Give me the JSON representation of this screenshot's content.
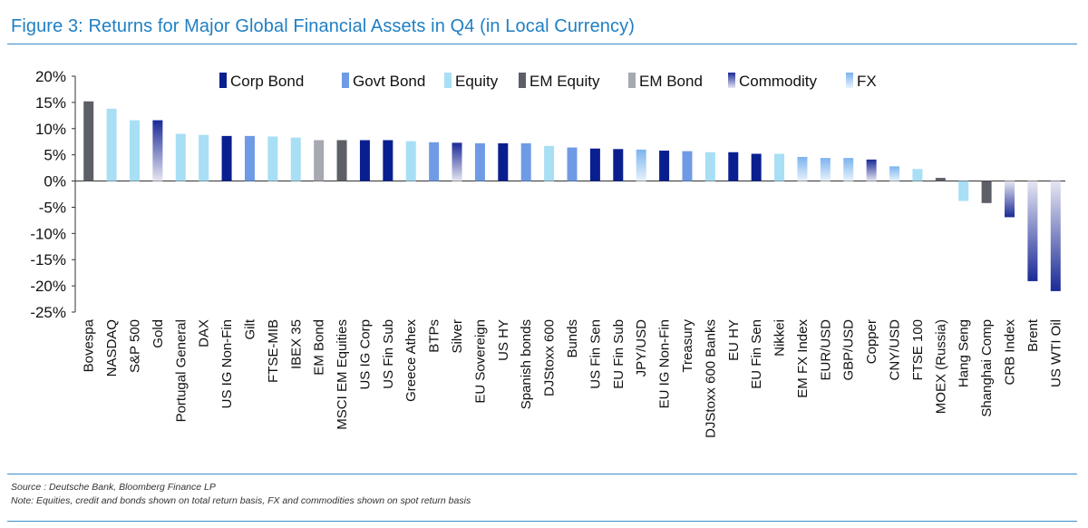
{
  "figure_title": "Figure 3: Returns for Major Global Financial Assets in Q4 (in Local Currency)",
  "source": "Source : Deutsche Bank, Bloomberg Finance LP",
  "note": "Note: Equities, credit and bonds shown on total return basis, FX and commodities shown on spot return basis",
  "colors": {
    "corp_bond": "#0a1f8f",
    "govt_bond": "#6f9be6",
    "equity": "#a8dff5",
    "em_equity": "#5c5f66",
    "em_bond": "#a7a9b0",
    "commodity_dark": "#1a2a96",
    "commodity_light": "#e6e6f2",
    "fx_dark": "#7cb3ee",
    "fx_light": "#e8f3fc"
  },
  "chart_data": {
    "type": "bar",
    "ylim": [
      -25,
      20
    ],
    "yticks": [
      "20%",
      "15%",
      "10%",
      "5%",
      "0%",
      "-5%",
      "-10%",
      "-15%",
      "-20%",
      "-25%"
    ],
    "ytick_values": [
      20,
      15,
      10,
      5,
      0,
      -5,
      -10,
      -15,
      -20,
      -25
    ],
    "legend_position": "top",
    "legend": [
      {
        "name": "Corp Bond",
        "key": "corp_bond"
      },
      {
        "name": "Govt Bond",
        "key": "govt_bond"
      },
      {
        "name": "Equity",
        "key": "equity"
      },
      {
        "name": "EM Equity",
        "key": "em_equity"
      },
      {
        "name": "EM Bond",
        "key": "em_bond"
      },
      {
        "name": "Commodity",
        "key": "commodity"
      },
      {
        "name": "FX",
        "key": "fx"
      }
    ],
    "categories": [
      "Bovespa",
      "NASDAQ",
      "S&P 500",
      "Gold",
      "Portugal General",
      "DAX",
      "US IG Non-Fin",
      "Gilt",
      "FTSE-MIB",
      "IBEX 35",
      "EM Bond",
      "MSCI EM Equities",
      "US IG Corp",
      "US Fin Sub",
      "Greece Athex",
      "BTPs",
      "Silver",
      "EU Sovereign",
      "US HY",
      "Spanish bonds",
      "DJStoxx 600",
      "Bunds",
      "US Fin Sen",
      "EU Fin Sub",
      "JPY/USD",
      "EU IG Non-Fin",
      "Treasury",
      "DJStoxx 600 Banks",
      "EU HY",
      "EU Fin Sen",
      "Nikkei",
      "EM FX Index",
      "EUR/USD",
      "GBP/USD",
      "Copper",
      "CNY/USD",
      "FTSE 100",
      "MOEX (Russia)",
      "Hang Seng",
      "Shanghai Comp",
      "CRB Index",
      "Brent",
      "US WTI Oil"
    ],
    "values": [
      15.2,
      13.8,
      11.6,
      11.6,
      9.0,
      8.8,
      8.6,
      8.6,
      8.5,
      8.3,
      7.8,
      7.8,
      7.8,
      7.8,
      7.6,
      7.4,
      7.3,
      7.2,
      7.2,
      7.2,
      6.7,
      6.4,
      6.2,
      6.1,
      6.0,
      5.8,
      5.7,
      5.5,
      5.5,
      5.2,
      5.2,
      4.6,
      4.4,
      4.4,
      4.1,
      2.8,
      2.3,
      0.6,
      -3.8,
      -4.2,
      -6.9,
      -19.1,
      -21.0
    ],
    "asset_class": [
      "em_equity",
      "equity",
      "equity",
      "commodity",
      "equity",
      "equity",
      "corp_bond",
      "govt_bond",
      "equity",
      "equity",
      "em_bond",
      "em_equity",
      "corp_bond",
      "corp_bond",
      "equity",
      "govt_bond",
      "commodity",
      "govt_bond",
      "corp_bond",
      "govt_bond",
      "equity",
      "govt_bond",
      "corp_bond",
      "corp_bond",
      "fx",
      "corp_bond",
      "govt_bond",
      "equity",
      "corp_bond",
      "corp_bond",
      "equity",
      "fx",
      "fx",
      "fx",
      "commodity",
      "fx",
      "equity",
      "em_equity",
      "equity",
      "em_equity",
      "commodity",
      "commodity",
      "commodity"
    ]
  }
}
